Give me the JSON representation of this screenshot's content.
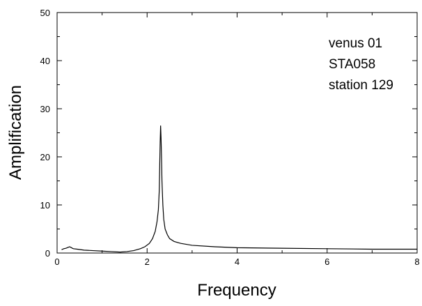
{
  "chart_data": {
    "type": "line",
    "title": "",
    "xlabel": "Frequency",
    "ylabel": "Amplification",
    "xlim": [
      0,
      8
    ],
    "ylim": [
      0,
      50
    ],
    "x_ticks": [
      0,
      2,
      4,
      6,
      8
    ],
    "y_ticks": [
      0,
      10,
      20,
      30,
      40,
      50
    ],
    "grid": false,
    "annotations": [
      "venus 01",
      "STA058",
      "station 129"
    ],
    "series": [
      {
        "color": "#000000",
        "x": [
          0.1,
          0.15,
          0.2,
          0.25,
          0.28,
          0.32,
          0.36,
          0.45,
          0.6,
          0.8,
          1.0,
          1.2,
          1.4,
          1.55,
          1.7,
          1.85,
          1.95,
          2.05,
          2.12,
          2.18,
          2.22,
          2.25,
          2.27,
          2.28,
          2.29,
          2.3,
          2.31,
          2.32,
          2.33,
          2.35,
          2.37,
          2.4,
          2.45,
          2.5,
          2.6,
          2.75,
          3.0,
          3.5,
          4.0,
          5.0,
          6.0,
          7.0,
          8.0
        ],
        "y": [
          0.7,
          0.9,
          1.0,
          1.2,
          1.3,
          1.1,
          0.9,
          0.8,
          0.6,
          0.5,
          0.4,
          0.3,
          0.2,
          0.3,
          0.5,
          0.9,
          1.3,
          2.0,
          3.0,
          4.5,
          6.5,
          9.0,
          13.0,
          18.0,
          23.0,
          26.5,
          24.0,
          20.0,
          15.0,
          10.0,
          7.0,
          5.0,
          3.8,
          3.0,
          2.4,
          2.0,
          1.6,
          1.3,
          1.1,
          1.0,
          0.9,
          0.8,
          0.8
        ]
      }
    ]
  }
}
